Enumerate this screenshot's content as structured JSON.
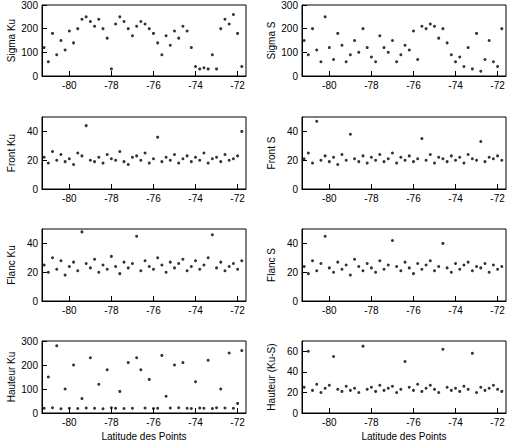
{
  "chart_data": [
    {
      "type": "scatter",
      "ylabel": "Sigma Ku",
      "color": "#000000",
      "marker": "circle",
      "xlim": [
        -81.3,
        -71.6
      ],
      "xticks": [
        -80,
        -78,
        -76,
        -74,
        -72
      ],
      "ylim": [
        0,
        300
      ],
      "yticks": [
        0,
        100,
        200,
        300
      ],
      "x": [
        -81.2,
        -81.0,
        -80.8,
        -80.6,
        -80.4,
        -80.2,
        -80.0,
        -79.8,
        -79.6,
        -79.4,
        -79.2,
        -79.0,
        -78.8,
        -78.6,
        -78.4,
        -78.2,
        -78.0,
        -77.8,
        -77.6,
        -77.4,
        -77.2,
        -77.0,
        -76.8,
        -76.6,
        -76.4,
        -76.2,
        -76.0,
        -75.8,
        -75.6,
        -75.4,
        -75.2,
        -75.0,
        -74.8,
        -74.6,
        -74.4,
        -74.2,
        -74.0,
        -73.8,
        -73.6,
        -73.4,
        -73.2,
        -73.0,
        -72.8,
        -72.6,
        -72.4,
        -72.2,
        -72.0,
        -71.8
      ],
      "values": [
        120,
        60,
        180,
        90,
        150,
        110,
        190,
        140,
        200,
        240,
        250,
        230,
        210,
        240,
        200,
        160,
        30,
        220,
        250,
        230,
        200,
        170,
        210,
        230,
        220,
        200,
        180,
        140,
        90,
        170,
        130,
        190,
        160,
        210,
        190,
        120,
        40,
        30,
        35,
        30,
        90,
        30,
        200,
        240,
        220,
        260,
        180,
        40
      ]
    },
    {
      "type": "scatter",
      "ylabel": "Front Ku",
      "color": "#000000",
      "marker": "circle",
      "xlim": [
        -81.3,
        -71.6
      ],
      "xticks": [
        -80,
        -78,
        -76,
        -74,
        -72
      ],
      "ylim": [
        0,
        50
      ],
      "yticks": [
        0,
        20,
        40
      ],
      "x": [
        -81.2,
        -81.0,
        -80.8,
        -80.6,
        -80.4,
        -80.2,
        -80.0,
        -79.8,
        -79.6,
        -79.4,
        -79.2,
        -79.0,
        -78.8,
        -78.6,
        -78.4,
        -78.2,
        -78.0,
        -77.8,
        -77.6,
        -77.4,
        -77.2,
        -77.0,
        -76.8,
        -76.6,
        -76.4,
        -76.2,
        -76.0,
        -75.8,
        -75.6,
        -75.4,
        -75.2,
        -75.0,
        -74.8,
        -74.6,
        -74.4,
        -74.2,
        -74.0,
        -73.8,
        -73.6,
        -73.4,
        -73.2,
        -73.0,
        -72.8,
        -72.6,
        -72.4,
        -72.2,
        -72.0,
        -71.8
      ],
      "values": [
        22,
        18,
        26,
        20,
        24,
        19,
        21,
        17,
        25,
        23,
        44,
        20,
        19,
        22,
        18,
        24,
        21,
        20,
        26,
        19,
        17,
        22,
        23,
        20,
        25,
        18,
        21,
        36,
        19,
        22,
        20,
        24,
        18,
        21,
        23,
        19,
        22,
        20,
        25,
        18,
        21,
        22,
        19,
        24,
        20,
        21,
        23,
        40
      ]
    },
    {
      "type": "scatter",
      "ylabel": "Flanc Ku",
      "color": "#000000",
      "marker": "circle",
      "xlim": [
        -81.3,
        -71.6
      ],
      "xticks": [
        -80,
        -78,
        -76,
        -74,
        -72
      ],
      "ylim": [
        0,
        50
      ],
      "yticks": [
        0,
        20,
        40
      ],
      "x": [
        -81.2,
        -81.0,
        -80.8,
        -80.6,
        -80.4,
        -80.2,
        -80.0,
        -79.8,
        -79.6,
        -79.4,
        -79.2,
        -79.0,
        -78.8,
        -78.6,
        -78.4,
        -78.2,
        -78.0,
        -77.8,
        -77.6,
        -77.4,
        -77.2,
        -77.0,
        -76.8,
        -76.6,
        -76.4,
        -76.2,
        -76.0,
        -75.8,
        -75.6,
        -75.4,
        -75.2,
        -75.0,
        -74.8,
        -74.6,
        -74.4,
        -74.2,
        -74.0,
        -73.8,
        -73.6,
        -73.4,
        -73.2,
        -73.0,
        -72.8,
        -72.6,
        -72.4,
        -72.2,
        -72.0,
        -71.8
      ],
      "values": [
        25,
        20,
        30,
        22,
        28,
        18,
        24,
        27,
        21,
        48,
        26,
        23,
        29,
        20,
        25,
        22,
        31,
        24,
        19,
        27,
        23,
        26,
        45,
        21,
        28,
        24,
        22,
        30,
        25,
        20,
        27,
        23,
        26,
        29,
        21,
        24,
        28,
        22,
        25,
        30,
        46,
        23,
        27,
        21,
        24,
        26,
        22,
        28
      ]
    },
    {
      "type": "scatter",
      "ylabel": "Hauteur Ku",
      "xlabel": "Latitude des Points",
      "color": "#000000",
      "marker": "circle",
      "xlim": [
        -81.3,
        -71.6
      ],
      "xticks": [
        -80,
        -78,
        -76,
        -74,
        -72
      ],
      "ylim": [
        0,
        300
      ],
      "yticks": [
        0,
        100,
        200,
        300
      ],
      "x": [
        -81.2,
        -81.0,
        -80.8,
        -80.6,
        -80.4,
        -80.2,
        -80.0,
        -79.8,
        -79.6,
        -79.4,
        -79.2,
        -79.0,
        -78.8,
        -78.6,
        -78.4,
        -78.2,
        -78.0,
        -77.8,
        -77.6,
        -77.4,
        -77.2,
        -77.0,
        -76.8,
        -76.6,
        -76.4,
        -76.2,
        -76.0,
        -75.8,
        -75.6,
        -75.4,
        -75.2,
        -75.0,
        -74.8,
        -74.6,
        -74.4,
        -74.2,
        -74.0,
        -73.8,
        -73.6,
        -73.4,
        -73.2,
        -73.0,
        -72.8,
        -72.6,
        -72.4,
        -72.2,
        -72.0,
        -71.8
      ],
      "values": [
        20,
        150,
        22,
        280,
        18,
        100,
        20,
        200,
        19,
        60,
        21,
        230,
        20,
        120,
        18,
        180,
        22,
        20,
        90,
        19,
        210,
        20,
        230,
        180,
        21,
        140,
        19,
        20,
        240,
        70,
        21,
        200,
        22,
        210,
        20,
        19,
        130,
        21,
        20,
        220,
        19,
        22,
        100,
        21,
        250,
        20,
        40,
        260
      ]
    },
    {
      "type": "scatter",
      "ylabel": "Sigma S",
      "color": "#000000",
      "marker": "circle",
      "xlim": [
        -81.3,
        -71.6
      ],
      "xticks": [
        -80,
        -78,
        -76,
        -74,
        -72
      ],
      "ylim": [
        0,
        300
      ],
      "yticks": [
        0,
        100,
        200,
        300
      ],
      "x": [
        -81.2,
        -81.0,
        -80.8,
        -80.6,
        -80.4,
        -80.2,
        -80.0,
        -79.8,
        -79.6,
        -79.4,
        -79.2,
        -79.0,
        -78.8,
        -78.6,
        -78.4,
        -78.2,
        -78.0,
        -77.8,
        -77.6,
        -77.4,
        -77.2,
        -77.0,
        -76.8,
        -76.6,
        -76.4,
        -76.2,
        -76.0,
        -75.8,
        -75.6,
        -75.4,
        -75.2,
        -75.0,
        -74.8,
        -74.6,
        -74.4,
        -74.2,
        -74.0,
        -73.8,
        -73.6,
        -73.4,
        -73.2,
        -73.0,
        -72.8,
        -72.6,
        -72.4,
        -72.2,
        -72.0,
        -71.8
      ],
      "values": [
        150,
        90,
        200,
        110,
        60,
        250,
        120,
        70,
        180,
        130,
        60,
        90,
        150,
        100,
        200,
        120,
        80,
        60,
        170,
        120,
        100,
        150,
        60,
        90,
        130,
        110,
        190,
        70,
        210,
        200,
        220,
        210,
        160,
        200,
        140,
        90,
        60,
        80,
        40,
        120,
        30,
        180,
        20,
        70,
        150,
        60,
        40,
        200
      ]
    },
    {
      "type": "scatter",
      "ylabel": "Front S",
      "color": "#000000",
      "marker": "circle",
      "xlim": [
        -81.3,
        -71.6
      ],
      "xticks": [
        -80,
        -78,
        -76,
        -74,
        -72
      ],
      "ylim": [
        0,
        50
      ],
      "yticks": [
        0,
        20,
        40
      ],
      "x": [
        -81.2,
        -81.0,
        -80.8,
        -80.6,
        -80.4,
        -80.2,
        -80.0,
        -79.8,
        -79.6,
        -79.4,
        -79.2,
        -79.0,
        -78.8,
        -78.6,
        -78.4,
        -78.2,
        -78.0,
        -77.8,
        -77.6,
        -77.4,
        -77.2,
        -77.0,
        -76.8,
        -76.6,
        -76.4,
        -76.2,
        -76.0,
        -75.8,
        -75.6,
        -75.4,
        -75.2,
        -75.0,
        -74.8,
        -74.6,
        -74.4,
        -74.2,
        -74.0,
        -73.8,
        -73.6,
        -73.4,
        -73.2,
        -73.0,
        -72.8,
        -72.6,
        -72.4,
        -72.2,
        -72.0,
        -71.8
      ],
      "values": [
        21,
        25,
        18,
        47,
        20,
        23,
        19,
        22,
        17,
        24,
        20,
        38,
        21,
        19,
        23,
        18,
        22,
        20,
        24,
        19,
        21,
        25,
        18,
        22,
        20,
        23,
        19,
        21,
        35,
        20,
        24,
        18,
        22,
        21,
        19,
        23,
        20,
        22,
        18,
        24,
        21,
        20,
        33,
        19,
        22,
        21,
        23,
        20
      ]
    },
    {
      "type": "scatter",
      "ylabel": "Flanc S",
      "color": "#000000",
      "marker": "circle",
      "xlim": [
        -81.3,
        -71.6
      ],
      "xticks": [
        -80,
        -78,
        -76,
        -74,
        -72
      ],
      "ylim": [
        0,
        50
      ],
      "yticks": [
        0,
        20,
        40
      ],
      "x": [
        -81.2,
        -81.0,
        -80.8,
        -80.6,
        -80.4,
        -80.2,
        -80.0,
        -79.8,
        -79.6,
        -79.4,
        -79.2,
        -79.0,
        -78.8,
        -78.6,
        -78.4,
        -78.2,
        -78.0,
        -77.8,
        -77.6,
        -77.4,
        -77.2,
        -77.0,
        -76.8,
        -76.6,
        -76.4,
        -76.2,
        -76.0,
        -75.8,
        -75.6,
        -75.4,
        -75.2,
        -75.0,
        -74.8,
        -74.6,
        -74.4,
        -74.2,
        -74.0,
        -73.8,
        -73.6,
        -73.4,
        -73.2,
        -73.0,
        -72.8,
        -72.6,
        -72.4,
        -72.2,
        -72.0,
        -71.8
      ],
      "values": [
        24,
        19,
        28,
        21,
        26,
        45,
        23,
        20,
        27,
        22,
        25,
        18,
        29,
        24,
        21,
        26,
        23,
        20,
        28,
        22,
        25,
        42,
        24,
        21,
        27,
        23,
        19,
        26,
        22,
        25,
        28,
        21,
        24,
        40,
        23,
        20,
        26,
        22,
        25,
        27,
        21,
        24,
        23,
        26,
        20,
        25,
        22,
        24
      ]
    },
    {
      "type": "scatter",
      "ylabel": "Hauteur (Ku-S)",
      "xlabel": "Latitude des Points",
      "color": "#000000",
      "marker": "circle",
      "xlim": [
        -81.3,
        -71.6
      ],
      "xticks": [
        -80,
        -78,
        -76,
        -74,
        -72
      ],
      "ylim": [
        0,
        70
      ],
      "yticks": [
        0,
        20,
        40,
        60
      ],
      "x": [
        -81.2,
        -81.0,
        -80.8,
        -80.6,
        -80.4,
        -80.2,
        -80.0,
        -79.8,
        -79.6,
        -79.4,
        -79.2,
        -79.0,
        -78.8,
        -78.6,
        -78.4,
        -78.2,
        -78.0,
        -77.8,
        -77.6,
        -77.4,
        -77.2,
        -77.0,
        -76.8,
        -76.6,
        -76.4,
        -76.2,
        -76.0,
        -75.8,
        -75.6,
        -75.4,
        -75.2,
        -75.0,
        -74.8,
        -74.6,
        -74.4,
        -74.2,
        -74.0,
        -73.8,
        -73.6,
        -73.4,
        -73.2,
        -73.0,
        -72.8,
        -72.6,
        -72.4,
        -72.2,
        -72.0,
        -71.8
      ],
      "values": [
        25,
        60,
        22,
        28,
        20,
        24,
        27,
        55,
        23,
        21,
        26,
        22,
        24,
        20,
        65,
        23,
        25,
        21,
        27,
        22,
        24,
        26,
        20,
        23,
        50,
        25,
        22,
        28,
        21,
        24,
        27,
        23,
        20,
        62,
        25,
        22,
        24,
        21,
        26,
        23,
        58,
        20,
        25,
        22,
        24,
        27,
        23,
        21
      ]
    }
  ]
}
